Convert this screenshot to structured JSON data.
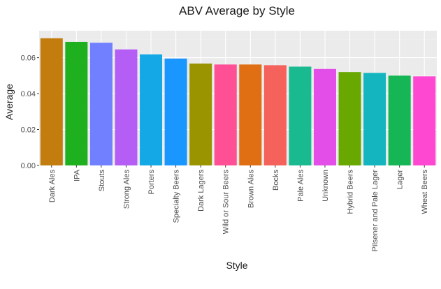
{
  "chart_data": {
    "type": "bar",
    "title": "ABV Average by Style",
    "xlabel": "Style",
    "ylabel": "Average",
    "ylim": [
      0,
      0.075
    ],
    "yticks": [
      "0.00",
      "0.02",
      "0.04",
      "0.06"
    ],
    "grid": true,
    "legend": "none",
    "categories": [
      "Dark Ales",
      "IPA",
      "Stouts",
      "Strong Ales",
      "Porters",
      "Specialty Beers",
      "Dark Lagers",
      "Wild or Sour Beers",
      "Brown Ales",
      "Bocks",
      "Pale Ales",
      "Unknown",
      "Hybrid Beers",
      "Pilsener and Pale Lager",
      "Lager",
      "Wheat Beers"
    ],
    "values": [
      0.0708,
      0.0688,
      0.0683,
      0.0646,
      0.0618,
      0.0595,
      0.0567,
      0.0562,
      0.0562,
      0.0558,
      0.055,
      0.0537,
      0.052,
      0.0515,
      0.05,
      0.0496
    ],
    "colors": [
      "#C27D0E",
      "#1FB01F",
      "#7080FF",
      "#B45EF5",
      "#14A9E6",
      "#1A96FF",
      "#999400",
      "#FF4F95",
      "#E06E12",
      "#F4625B",
      "#19BA8F",
      "#E44EE8",
      "#68A800",
      "#15B5BF",
      "#16B656",
      "#FF48D2"
    ]
  }
}
